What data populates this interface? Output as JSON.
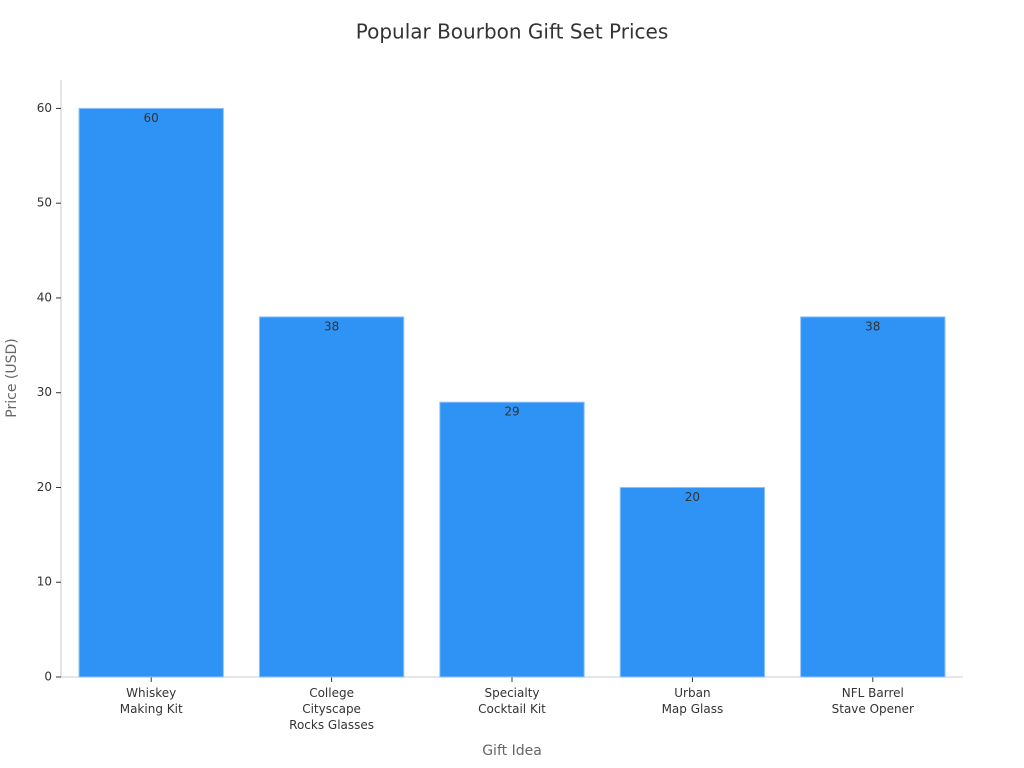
{
  "chart_data": {
    "type": "bar",
    "title": "Popular Bourbon Gift Set Prices",
    "x_label": "Gift Idea",
    "y_label": "Price (USD)",
    "categories": [
      [
        "Whiskey",
        "Making Kit"
      ],
      [
        "College",
        "Cityscape",
        "Rocks Glasses"
      ],
      [
        "Specialty",
        "Cocktail Kit"
      ],
      [
        "Urban",
        "Map Glass"
      ],
      [
        "NFL Barrel",
        "Stave Opener"
      ]
    ],
    "values": [
      60,
      38,
      29,
      20,
      38
    ],
    "color": "#2f92f5",
    "ylim": [
      0,
      63
    ],
    "yticks": [
      0,
      10,
      20,
      30,
      40,
      50,
      60
    ],
    "grid": false
  }
}
